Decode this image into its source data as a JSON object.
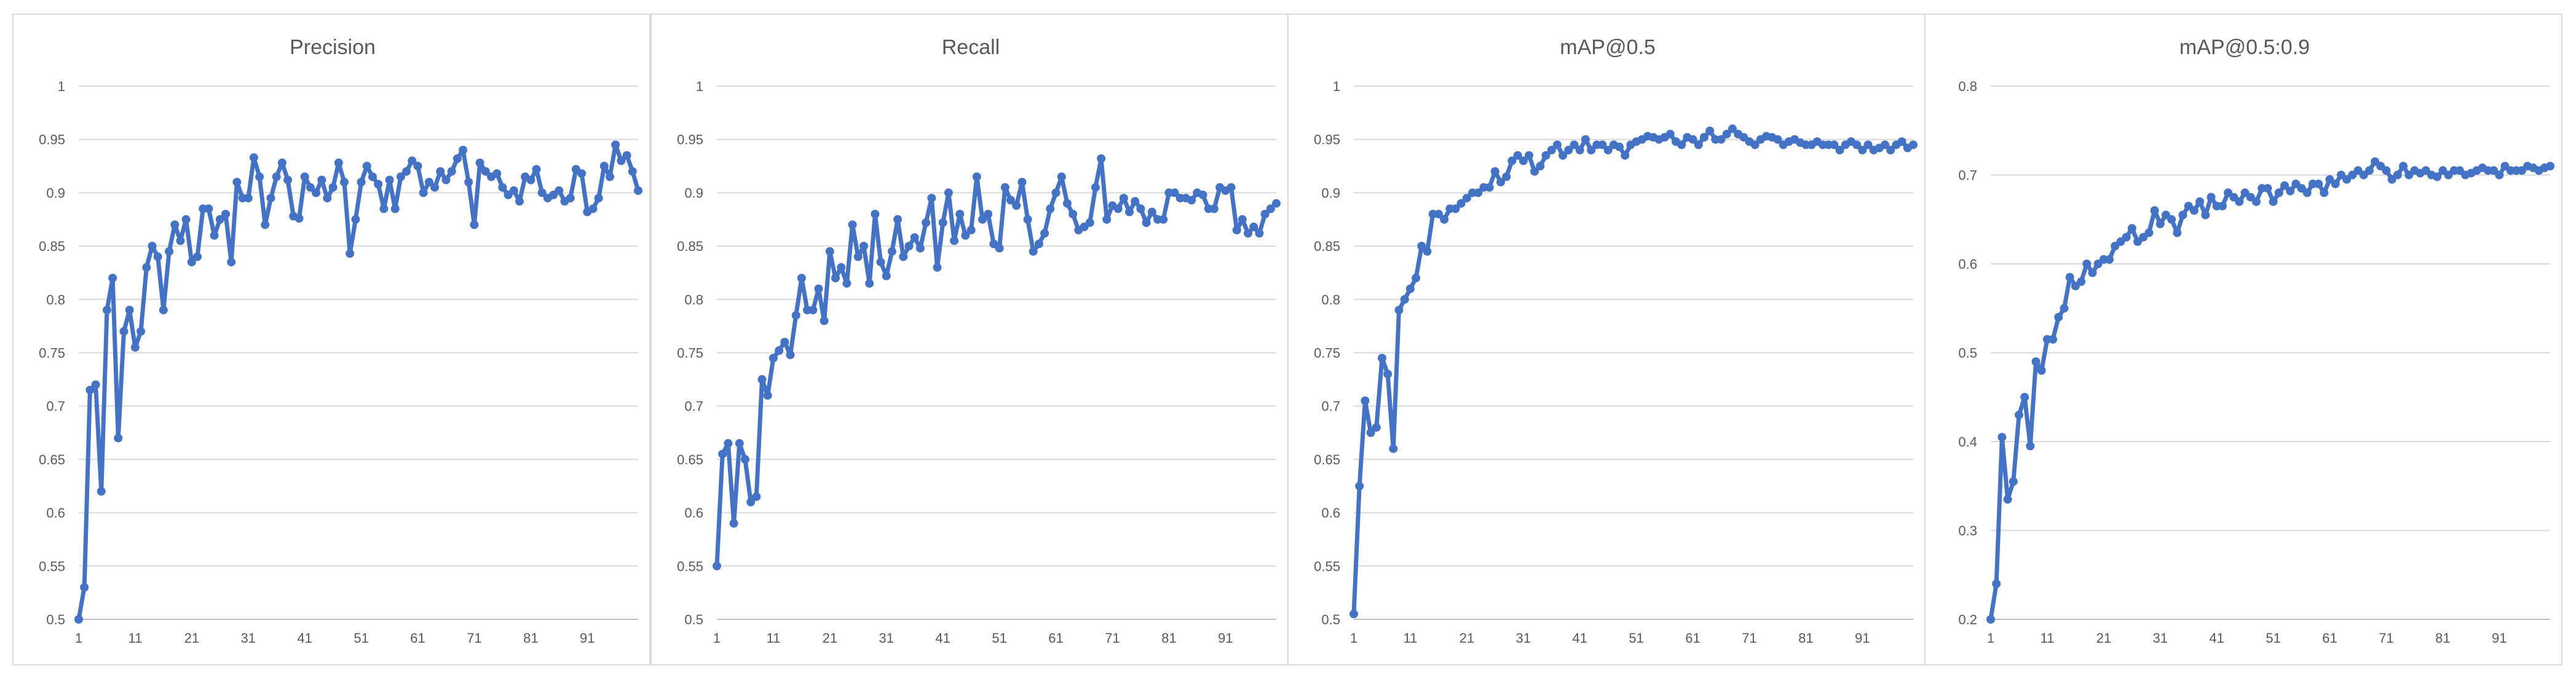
{
  "chart_data": [
    {
      "type": "line",
      "title": "Precision",
      "x": [
        1,
        2,
        3,
        4,
        5,
        6,
        7,
        8,
        9,
        10,
        11,
        12,
        13,
        14,
        15,
        16,
        17,
        18,
        19,
        20,
        21,
        22,
        23,
        24,
        25,
        26,
        27,
        28,
        29,
        30,
        31,
        32,
        33,
        34,
        35,
        36,
        37,
        38,
        39,
        40,
        41,
        42,
        43,
        44,
        45,
        46,
        47,
        48,
        49,
        50,
        51,
        52,
        53,
        54,
        55,
        56,
        57,
        58,
        59,
        60,
        61,
        62,
        63,
        64,
        65,
        66,
        67,
        68,
        69,
        70,
        71,
        72,
        73,
        74,
        75,
        76,
        77,
        78,
        79,
        80,
        81,
        82,
        83,
        84,
        85,
        86,
        87,
        88,
        89,
        90,
        91,
        92,
        93,
        94,
        95,
        96,
        97,
        98,
        99,
        100
      ],
      "x_ticks": [
        1,
        11,
        21,
        31,
        41,
        51,
        61,
        71,
        81,
        91
      ],
      "ylim": [
        0.5,
        1
      ],
      "y_ticks": [
        0.5,
        0.55,
        0.6,
        0.65,
        0.7,
        0.75,
        0.8,
        0.85,
        0.9,
        0.95,
        1
      ],
      "grid": true,
      "series": [
        {
          "color": "#4472c4",
          "values": [
            0.5,
            0.53,
            0.715,
            0.72,
            0.62,
            0.79,
            0.82,
            0.67,
            0.77,
            0.79,
            0.755,
            0.77,
            0.83,
            0.85,
            0.84,
            0.79,
            0.845,
            0.87,
            0.855,
            0.875,
            0.835,
            0.84,
            0.885,
            0.885,
            0.86,
            0.875,
            0.88,
            0.835,
            0.91,
            0.895,
            0.895,
            0.933,
            0.915,
            0.87,
            0.895,
            0.915,
            0.928,
            0.912,
            0.878,
            0.876,
            0.915,
            0.905,
            0.9,
            0.912,
            0.895,
            0.905,
            0.928,
            0.91,
            0.843,
            0.875,
            0.91,
            0.925,
            0.915,
            0.908,
            0.885,
            0.912,
            0.885,
            0.915,
            0.92,
            0.93,
            0.925,
            0.9,
            0.91,
            0.905,
            0.92,
            0.912,
            0.92,
            0.932,
            0.94,
            0.91,
            0.87,
            0.928,
            0.92,
            0.915,
            0.918,
            0.905,
            0.898,
            0.902,
            0.892,
            0.915,
            0.912,
            0.922,
            0.9,
            0.895,
            0.898,
            0.902,
            0.892,
            0.895,
            0.922,
            0.918,
            0.882,
            0.885,
            0.895,
            0.925,
            0.915,
            0.945,
            0.93,
            0.935,
            0.92,
            0.902
          ]
        }
      ]
    },
    {
      "type": "line",
      "title": "Recall",
      "x": [
        1,
        2,
        3,
        4,
        5,
        6,
        7,
        8,
        9,
        10,
        11,
        12,
        13,
        14,
        15,
        16,
        17,
        18,
        19,
        20,
        21,
        22,
        23,
        24,
        25,
        26,
        27,
        28,
        29,
        30,
        31,
        32,
        33,
        34,
        35,
        36,
        37,
        38,
        39,
        40,
        41,
        42,
        43,
        44,
        45,
        46,
        47,
        48,
        49,
        50,
        51,
        52,
        53,
        54,
        55,
        56,
        57,
        58,
        59,
        60,
        61,
        62,
        63,
        64,
        65,
        66,
        67,
        68,
        69,
        70,
        71,
        72,
        73,
        74,
        75,
        76,
        77,
        78,
        79,
        80,
        81,
        82,
        83,
        84,
        85,
        86,
        87,
        88,
        89,
        90,
        91,
        92,
        93,
        94,
        95,
        96,
        97,
        98,
        99,
        100
      ],
      "x_ticks": [
        1,
        11,
        21,
        31,
        41,
        51,
        61,
        71,
        81,
        91
      ],
      "ylim": [
        0.5,
        1
      ],
      "y_ticks": [
        0.5,
        0.55,
        0.6,
        0.65,
        0.7,
        0.75,
        0.8,
        0.85,
        0.9,
        0.95,
        1
      ],
      "grid": true,
      "series": [
        {
          "color": "#4472c4",
          "values": [
            0.55,
            0.655,
            0.665,
            0.59,
            0.665,
            0.65,
            0.61,
            0.615,
            0.725,
            0.71,
            0.745,
            0.752,
            0.76,
            0.748,
            0.785,
            0.82,
            0.79,
            0.79,
            0.81,
            0.78,
            0.845,
            0.82,
            0.83,
            0.815,
            0.87,
            0.84,
            0.85,
            0.815,
            0.88,
            0.835,
            0.822,
            0.845,
            0.875,
            0.84,
            0.85,
            0.858,
            0.848,
            0.872,
            0.895,
            0.83,
            0.872,
            0.9,
            0.855,
            0.88,
            0.86,
            0.865,
            0.915,
            0.875,
            0.88,
            0.852,
            0.848,
            0.905,
            0.893,
            0.888,
            0.91,
            0.875,
            0.845,
            0.852,
            0.862,
            0.885,
            0.9,
            0.915,
            0.89,
            0.88,
            0.865,
            0.868,
            0.872,
            0.905,
            0.932,
            0.875,
            0.888,
            0.885,
            0.895,
            0.882,
            0.892,
            0.885,
            0.872,
            0.882,
            0.875,
            0.875,
            0.9,
            0.9,
            0.895,
            0.895,
            0.893,
            0.9,
            0.898,
            0.885,
            0.885,
            0.905,
            0.902,
            0.905,
            0.865,
            0.875,
            0.862,
            0.868,
            0.862,
            0.88,
            0.885,
            0.89
          ]
        }
      ]
    },
    {
      "type": "line",
      "title": "mAP@0.5",
      "x": [
        1,
        2,
        3,
        4,
        5,
        6,
        7,
        8,
        9,
        10,
        11,
        12,
        13,
        14,
        15,
        16,
        17,
        18,
        19,
        20,
        21,
        22,
        23,
        24,
        25,
        26,
        27,
        28,
        29,
        30,
        31,
        32,
        33,
        34,
        35,
        36,
        37,
        38,
        39,
        40,
        41,
        42,
        43,
        44,
        45,
        46,
        47,
        48,
        49,
        50,
        51,
        52,
        53,
        54,
        55,
        56,
        57,
        58,
        59,
        60,
        61,
        62,
        63,
        64,
        65,
        66,
        67,
        68,
        69,
        70,
        71,
        72,
        73,
        74,
        75,
        76,
        77,
        78,
        79,
        80,
        81,
        82,
        83,
        84,
        85,
        86,
        87,
        88,
        89,
        90,
        91,
        92,
        93,
        94,
        95,
        96,
        97,
        98,
        99,
        100
      ],
      "x_ticks": [
        1,
        11,
        21,
        31,
        41,
        51,
        61,
        71,
        81,
        91
      ],
      "ylim": [
        0.5,
        1
      ],
      "y_ticks": [
        0.5,
        0.55,
        0.6,
        0.65,
        0.7,
        0.75,
        0.8,
        0.85,
        0.9,
        0.95,
        1
      ],
      "grid": true,
      "series": [
        {
          "color": "#4472c4",
          "values": [
            0.505,
            0.625,
            0.705,
            0.675,
            0.68,
            0.745,
            0.73,
            0.66,
            0.79,
            0.8,
            0.81,
            0.82,
            0.85,
            0.845,
            0.88,
            0.88,
            0.875,
            0.885,
            0.885,
            0.89,
            0.895,
            0.9,
            0.9,
            0.905,
            0.905,
            0.92,
            0.91,
            0.915,
            0.93,
            0.935,
            0.93,
            0.935,
            0.92,
            0.925,
            0.935,
            0.94,
            0.945,
            0.935,
            0.94,
            0.945,
            0.94,
            0.95,
            0.94,
            0.945,
            0.945,
            0.94,
            0.945,
            0.943,
            0.935,
            0.945,
            0.948,
            0.95,
            0.953,
            0.952,
            0.95,
            0.952,
            0.955,
            0.948,
            0.945,
            0.952,
            0.95,
            0.945,
            0.952,
            0.958,
            0.95,
            0.95,
            0.955,
            0.96,
            0.955,
            0.952,
            0.948,
            0.945,
            0.95,
            0.953,
            0.952,
            0.95,
            0.945,
            0.948,
            0.95,
            0.947,
            0.945,
            0.945,
            0.948,
            0.945,
            0.945,
            0.945,
            0.94,
            0.945,
            0.948,
            0.945,
            0.94,
            0.945,
            0.94,
            0.942,
            0.945,
            0.94,
            0.945,
            0.948,
            0.942,
            0.945
          ]
        }
      ]
    },
    {
      "type": "line",
      "title": "mAP@0.5:0.9",
      "x": [
        1,
        2,
        3,
        4,
        5,
        6,
        7,
        8,
        9,
        10,
        11,
        12,
        13,
        14,
        15,
        16,
        17,
        18,
        19,
        20,
        21,
        22,
        23,
        24,
        25,
        26,
        27,
        28,
        29,
        30,
        31,
        32,
        33,
        34,
        35,
        36,
        37,
        38,
        39,
        40,
        41,
        42,
        43,
        44,
        45,
        46,
        47,
        48,
        49,
        50,
        51,
        52,
        53,
        54,
        55,
        56,
        57,
        58,
        59,
        60,
        61,
        62,
        63,
        64,
        65,
        66,
        67,
        68,
        69,
        70,
        71,
        72,
        73,
        74,
        75,
        76,
        77,
        78,
        79,
        80,
        81,
        82,
        83,
        84,
        85,
        86,
        87,
        88,
        89,
        90,
        91,
        92,
        93,
        94,
        95,
        96,
        97,
        98,
        99,
        100
      ],
      "x_ticks": [
        1,
        11,
        21,
        31,
        41,
        51,
        61,
        71,
        81,
        91
      ],
      "ylim": [
        0.2,
        0.8
      ],
      "y_ticks": [
        0.2,
        0.3,
        0.4,
        0.5,
        0.6,
        0.7,
        0.8
      ],
      "grid": true,
      "series": [
        {
          "color": "#4472c4",
          "values": [
            0.2,
            0.24,
            0.405,
            0.335,
            0.355,
            0.43,
            0.45,
            0.395,
            0.49,
            0.48,
            0.515,
            0.515,
            0.54,
            0.55,
            0.585,
            0.575,
            0.58,
            0.6,
            0.59,
            0.6,
            0.605,
            0.605,
            0.62,
            0.625,
            0.63,
            0.64,
            0.625,
            0.63,
            0.635,
            0.66,
            0.645,
            0.655,
            0.65,
            0.635,
            0.655,
            0.665,
            0.66,
            0.67,
            0.655,
            0.675,
            0.665,
            0.665,
            0.68,
            0.675,
            0.67,
            0.68,
            0.675,
            0.67,
            0.685,
            0.685,
            0.67,
            0.68,
            0.688,
            0.682,
            0.69,
            0.685,
            0.68,
            0.69,
            0.69,
            0.68,
            0.695,
            0.69,
            0.7,
            0.695,
            0.7,
            0.705,
            0.7,
            0.705,
            0.715,
            0.71,
            0.705,
            0.695,
            0.7,
            0.71,
            0.7,
            0.705,
            0.702,
            0.705,
            0.7,
            0.698,
            0.705,
            0.7,
            0.705,
            0.705,
            0.7,
            0.702,
            0.705,
            0.708,
            0.705,
            0.705,
            0.7,
            0.71,
            0.705,
            0.705,
            0.705,
            0.71,
            0.708,
            0.705,
            0.708,
            0.71
          ]
        }
      ]
    }
  ]
}
